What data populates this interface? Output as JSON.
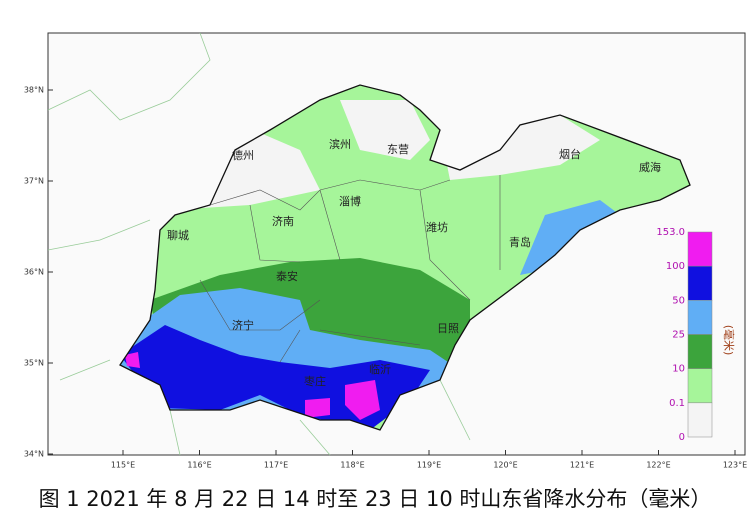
{
  "map": {
    "cities": [
      "德州",
      "滨州",
      "东营",
      "烟台",
      "威海",
      "聊城",
      "济南",
      "淄博",
      "潍坊",
      "青岛",
      "泰安",
      "济宁",
      "日照",
      "临沂",
      "枣庄"
    ],
    "lat_ticks": [
      {
        "value": 38,
        "label": "38°N"
      },
      {
        "value": 37,
        "label": "37°N"
      },
      {
        "value": 36,
        "label": "36°N"
      },
      {
        "value": 35,
        "label": "35°N"
      },
      {
        "value": 34,
        "label": "34°N"
      }
    ],
    "lon_ticks": [
      {
        "value": 115,
        "label": "115°E"
      },
      {
        "value": 116,
        "label": "116°E"
      },
      {
        "value": 117,
        "label": "117°E"
      },
      {
        "value": 118,
        "label": "118°E"
      },
      {
        "value": 119,
        "label": "119°E"
      },
      {
        "value": 120,
        "label": "120°E"
      },
      {
        "value": 121,
        "label": "121°E"
      },
      {
        "value": 122,
        "label": "122°E"
      },
      {
        "value": 123,
        "label": "123°E"
      }
    ]
  },
  "legend": {
    "labels": [
      "153.0",
      "100",
      "50",
      "25",
      "10",
      "0.1",
      "0"
    ],
    "colors": [
      "#f01cf0",
      "#1010e0",
      "#60aef5",
      "#3ca43c",
      "#a6f59a",
      "#f4f4f4"
    ],
    "unit": "(毫米)"
  },
  "caption": "图 1 2021 年 8 月 22 日 14 时至 23 日 10 时山东省降水分布（毫米）"
}
